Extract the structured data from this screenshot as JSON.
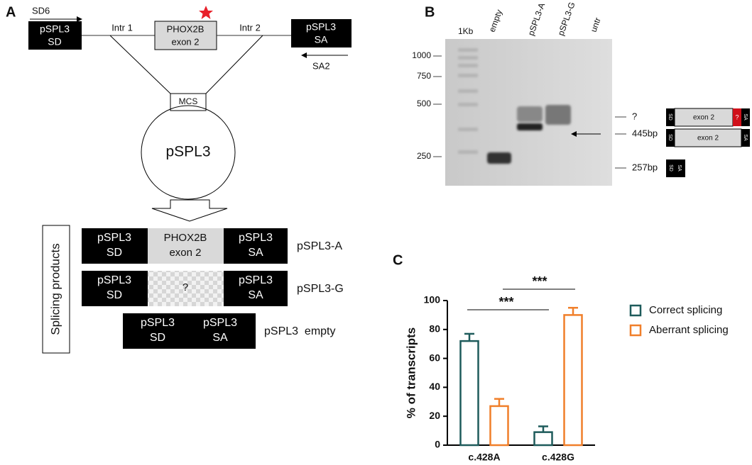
{
  "panel_a": {
    "label": "A",
    "forward_primer": "SD6",
    "reverse_primer": "SA2",
    "sd_box": [
      "pSPL3",
      "SD"
    ],
    "intron_1": "Intr 1",
    "exon_box": [
      "PHOX2B",
      "exon 2"
    ],
    "intron_2": "Intr 2",
    "sa_box": [
      "pSPL3",
      "SA"
    ],
    "mcs": "MCS",
    "vector": "pSPL3",
    "products_title": "Splicing products",
    "products": [
      {
        "sd": [
          "pSPL3",
          "SD"
        ],
        "middle": [
          "PHOX2B",
          "exon 2"
        ],
        "sa": [
          "pSPL3",
          "SA"
        ],
        "name": "pSPL3-A"
      },
      {
        "sd": [
          "pSPL3",
          "SD"
        ],
        "middle": [
          "?"
        ],
        "sa": [
          "pSPL3",
          "SA"
        ],
        "name": "pSPL3-G"
      },
      {
        "sd": [
          "pSPL3",
          "SD"
        ],
        "sa": [
          "pSPL3",
          "SA"
        ],
        "name": "pSPL3  empty"
      }
    ]
  },
  "panel_b": {
    "label": "B",
    "lanes": [
      "1Kb",
      "empty",
      "pSPL3-A",
      "pSPL3-G",
      "untr"
    ],
    "ladder": [
      "1000",
      "750",
      "500",
      "250"
    ],
    "bands": [
      {
        "label": "?",
        "scheme": [
          "SD",
          "exon 2",
          "?",
          "SA"
        ]
      },
      {
        "label": "445bp",
        "scheme": [
          "SD",
          "exon 2",
          "SA"
        ]
      },
      {
        "label": "257bp",
        "scheme": [
          "SD",
          "SA"
        ]
      }
    ]
  },
  "chart_data": {
    "type": "bar",
    "label": "C",
    "y_label": "% of transcripts",
    "categories": [
      "c.428A",
      "c.428G"
    ],
    "series": [
      {
        "name": "Correct splicing",
        "color": "#1e5b5b",
        "values": [
          72,
          9
        ],
        "errors": [
          5,
          4
        ]
      },
      {
        "name": "Aberrant splicing",
        "color": "#f07f2a",
        "values": [
          27,
          90
        ],
        "errors": [
          5,
          5
        ]
      }
    ],
    "ylim": [
      0,
      100
    ],
    "yticks": [
      0,
      20,
      40,
      60,
      80,
      100
    ],
    "annotations": [
      "***",
      "***"
    ]
  }
}
